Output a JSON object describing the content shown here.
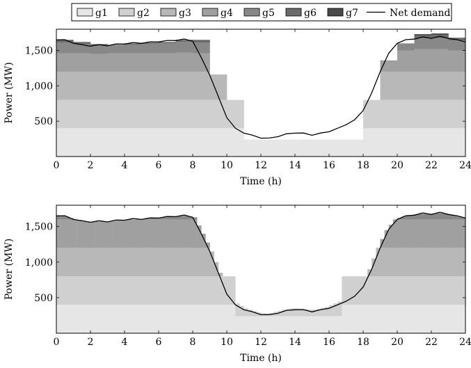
{
  "legend": {
    "items": [
      {
        "label": "g1",
        "color": "#e6e6e6"
      },
      {
        "label": "g2",
        "color": "#d0d0d0"
      },
      {
        "label": "g3",
        "color": "#b8b8b8"
      },
      {
        "label": "g4",
        "color": "#a0a0a0"
      },
      {
        "label": "g5",
        "color": "#888888"
      },
      {
        "label": "g6",
        "color": "#6b6b6b"
      },
      {
        "label": "g7",
        "color": "#4a4a4a"
      }
    ],
    "line_label": "Net demand",
    "line_color": "#000000"
  },
  "chart_data": [
    {
      "type": "area",
      "xlabel": "Time (h)",
      "ylabel": "Power (MW)",
      "xlim": [
        0,
        24
      ],
      "ylim": [
        0,
        1800
      ],
      "xticks": [
        0,
        2,
        4,
        6,
        8,
        10,
        12,
        14,
        16,
        18,
        20,
        22,
        24
      ],
      "yticks": [
        500,
        1000,
        1500
      ],
      "ytick_labels": [
        "500",
        "1,000",
        "1,500"
      ],
      "grid": false,
      "legend_position": "top",
      "net_demand": {
        "x": [
          0,
          0.5,
          1,
          1.5,
          2,
          2.5,
          3,
          3.5,
          4,
          4.5,
          5,
          5.5,
          6,
          6.5,
          7,
          7.5,
          8,
          8.5,
          9,
          9.5,
          10,
          10.5,
          11,
          11.5,
          12,
          12.5,
          13,
          13.5,
          14,
          14.5,
          15,
          15.5,
          16,
          16.5,
          17,
          17.5,
          18,
          18.5,
          19,
          19.5,
          20,
          20.5,
          21,
          21.5,
          22,
          22.5,
          23,
          23.5,
          24
        ],
        "y": [
          1650,
          1640,
          1600,
          1570,
          1560,
          1570,
          1565,
          1580,
          1590,
          1600,
          1600,
          1610,
          1620,
          1630,
          1640,
          1650,
          1630,
          1400,
          1150,
          850,
          550,
          400,
          330,
          290,
          260,
          250,
          280,
          310,
          330,
          320,
          300,
          320,
          350,
          400,
          450,
          520,
          650,
          900,
          1200,
          1450,
          1600,
          1640,
          1660,
          1680,
          1670,
          1690,
          1670,
          1640,
          1620
        ]
      },
      "x_edges": [
        0,
        1,
        2,
        3,
        4,
        5,
        6,
        7,
        8,
        9,
        10,
        11,
        12,
        13,
        14,
        15,
        16,
        17,
        18,
        19,
        20,
        21,
        22,
        23,
        24
      ],
      "generators": [
        {
          "name": "g1",
          "values": [
            400,
            400,
            400,
            400,
            400,
            400,
            400,
            400,
            400,
            400,
            400,
            240,
            240,
            240,
            240,
            240,
            240,
            240,
            400,
            400,
            400,
            400,
            400,
            400
          ]
        },
        {
          "name": "g2",
          "values": [
            400,
            400,
            400,
            400,
            400,
            400,
            400,
            400,
            400,
            400,
            400,
            0,
            0,
            0,
            0,
            0,
            0,
            0,
            400,
            400,
            400,
            400,
            400,
            400
          ]
        },
        {
          "name": "g3",
          "values": [
            400,
            400,
            400,
            400,
            400,
            400,
            400,
            400,
            400,
            360,
            0,
            0,
            0,
            0,
            0,
            0,
            0,
            0,
            0,
            400,
            400,
            400,
            400,
            400
          ]
        },
        {
          "name": "g4",
          "values": [
            260,
            260,
            250,
            260,
            260,
            260,
            260,
            270,
            260,
            0,
            0,
            0,
            0,
            0,
            0,
            0,
            0,
            0,
            0,
            160,
            300,
            320,
            320,
            300
          ]
        },
        {
          "name": "g5",
          "values": [
            150,
            130,
            120,
            110,
            120,
            130,
            140,
            150,
            150,
            0,
            0,
            0,
            0,
            0,
            0,
            0,
            0,
            0,
            0,
            0,
            100,
            150,
            150,
            140
          ]
        },
        {
          "name": "g6",
          "values": [
            40,
            30,
            20,
            10,
            20,
            20,
            20,
            30,
            40,
            0,
            0,
            0,
            0,
            0,
            0,
            0,
            0,
            0,
            0,
            0,
            0,
            40,
            50,
            40
          ]
        },
        {
          "name": "g7",
          "values": [
            0,
            0,
            0,
            0,
            0,
            0,
            0,
            0,
            0,
            0,
            0,
            0,
            0,
            0,
            0,
            0,
            0,
            0,
            0,
            0,
            0,
            20,
            20,
            0
          ]
        }
      ],
      "step_overlays": [
        {
          "x0": 8,
          "x1": 9,
          "y": 1400
        },
        {
          "x0": 9,
          "x1": 10,
          "y": 1050
        },
        {
          "x0": 10,
          "x1": 11,
          "y": 550
        },
        {
          "x0": 11,
          "x1": 17,
          "y": 400
        },
        {
          "x0": 17,
          "x1": 18,
          "y": 400
        },
        {
          "x0": 18,
          "x1": 19,
          "y": 550
        },
        {
          "x0": 19,
          "x1": 20,
          "y": 1400
        }
      ]
    },
    {
      "type": "area",
      "xlabel": "Time (h)",
      "ylabel": "Power (MW)",
      "xlim": [
        0,
        24
      ],
      "ylim": [
        0,
        1800
      ],
      "xticks": [
        0,
        2,
        4,
        6,
        8,
        10,
        12,
        14,
        16,
        18,
        20,
        22,
        24
      ],
      "yticks": [
        500,
        1000,
        1500
      ],
      "ytick_labels": [
        "500",
        "1,000",
        "1,500"
      ],
      "grid": false,
      "net_demand": {
        "x": [
          0,
          0.5,
          1,
          1.5,
          2,
          2.5,
          3,
          3.5,
          4,
          4.5,
          5,
          5.5,
          6,
          6.5,
          7,
          7.5,
          8,
          8.5,
          9,
          9.5,
          10,
          10.5,
          11,
          11.5,
          12,
          12.5,
          13,
          13.5,
          14,
          14.5,
          15,
          15.5,
          16,
          16.5,
          17,
          17.5,
          18,
          18.5,
          19,
          19.5,
          20,
          20.5,
          21,
          21.5,
          22,
          22.5,
          23,
          23.5,
          24
        ],
        "y": [
          1650,
          1640,
          1600,
          1570,
          1560,
          1570,
          1565,
          1580,
          1590,
          1600,
          1600,
          1610,
          1620,
          1630,
          1640,
          1650,
          1630,
          1400,
          1150,
          850,
          550,
          400,
          330,
          290,
          260,
          250,
          280,
          310,
          330,
          320,
          300,
          320,
          350,
          400,
          450,
          520,
          650,
          900,
          1200,
          1450,
          1600,
          1640,
          1660,
          1680,
          1670,
          1690,
          1670,
          1640,
          1620
        ]
      },
      "x_edges": [
        0,
        0.25,
        0.5,
        0.75,
        1,
        1.25,
        1.5,
        1.75,
        2,
        2.25,
        2.5,
        2.75,
        3,
        3.25,
        3.5,
        3.75,
        4,
        4.25,
        4.5,
        4.75,
        5,
        5.25,
        5.5,
        5.75,
        6,
        6.25,
        6.5,
        6.75,
        7,
        7.25,
        7.5,
        7.75,
        8,
        8.25,
        8.5,
        8.75,
        9,
        9.25,
        9.5,
        9.75,
        10,
        10.25,
        10.5,
        10.75,
        11,
        11.25,
        11.5,
        11.75,
        12,
        12.25,
        12.5,
        12.75,
        13,
        13.25,
        13.5,
        13.75,
        14,
        14.25,
        14.5,
        14.75,
        15,
        15.25,
        15.5,
        15.75,
        16,
        16.25,
        16.5,
        16.75,
        17,
        17.25,
        17.5,
        17.75,
        18,
        18.25,
        18.5,
        18.75,
        19,
        19.25,
        19.5,
        19.75,
        20,
        20.25,
        20.5,
        20.75,
        21,
        21.25,
        21.5,
        21.75,
        22,
        22.25,
        22.5,
        22.75,
        23,
        23.25,
        23.5,
        23.75,
        24
      ],
      "fine_step": true
    }
  ]
}
